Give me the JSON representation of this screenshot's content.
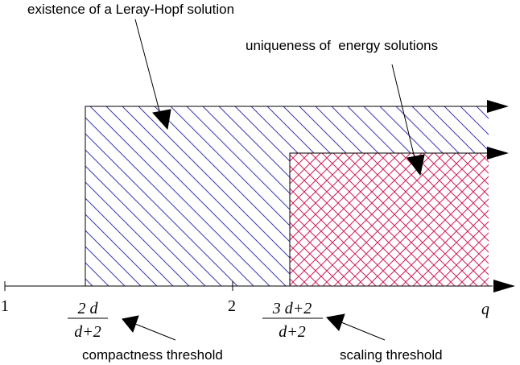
{
  "labels": {
    "existence": "existence of a Leray-Hopf solution",
    "uniqueness": "uniqueness of  energy solutions",
    "compactness": "compactness threshold",
    "scaling": "scaling threshold"
  },
  "axis": {
    "start": "1",
    "two": "2",
    "variable": "q"
  },
  "fractions": [
    {
      "numerator": "2 d",
      "denominator": "d+2"
    },
    {
      "numerator": "3 d+2",
      "denominator": "d+2"
    }
  ]
}
